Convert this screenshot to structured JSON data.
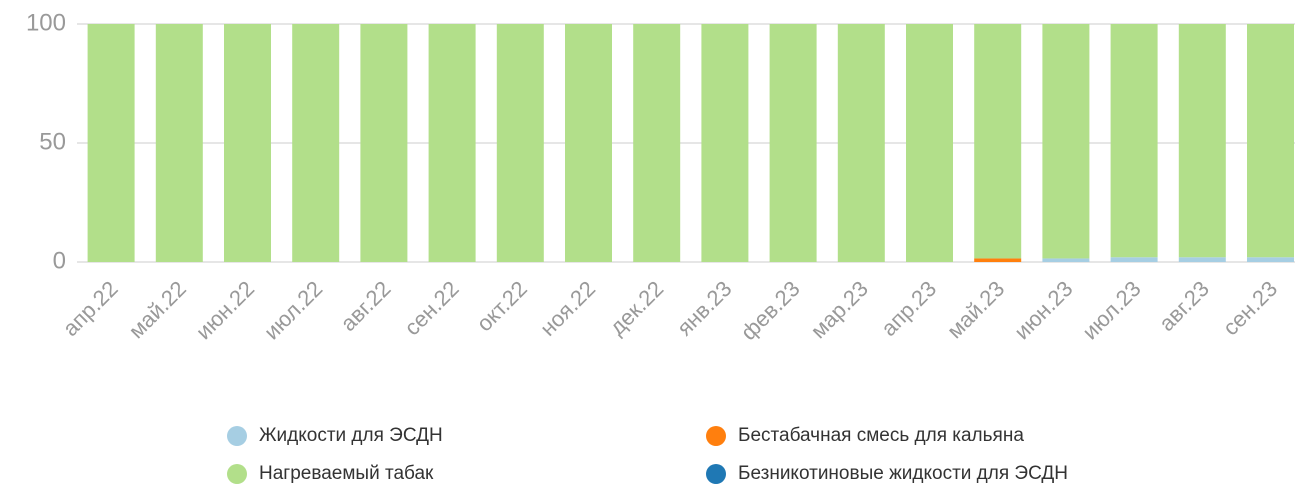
{
  "chart_data": {
    "type": "stacked_bar",
    "categories": [
      "апр.22",
      "май.22",
      "июн.22",
      "июл.22",
      "авг.22",
      "сен.22",
      "окт.22",
      "ноя.22",
      "дек.22",
      "янв.23",
      "фев.23",
      "мар.23",
      "апр.23",
      "май.23",
      "июн.23",
      "июл.23",
      "авг.23",
      "сен.23"
    ],
    "series": [
      {
        "name": "Жидкости для ЭСДН",
        "color": "#a6cee3",
        "values": [
          0,
          0,
          0,
          0,
          0,
          0,
          0,
          0,
          0,
          0,
          0,
          0,
          0,
          0,
          1.5,
          2,
          2,
          2
        ]
      },
      {
        "name": "Бестабачная смесь для кальяна",
        "color": "#ff7f0e",
        "values": [
          0,
          0,
          0,
          0,
          0,
          0,
          0,
          0,
          0,
          0,
          0,
          0,
          0,
          1.5,
          0,
          0,
          0,
          0
        ]
      },
      {
        "name": "Нагреваемый табак",
        "color": "#b2df8a",
        "values": [
          100,
          100,
          100,
          100,
          100,
          100,
          100,
          100,
          100,
          100,
          100,
          100,
          100,
          98.5,
          98.5,
          98,
          98,
          98
        ]
      },
      {
        "name": "Безникотиновые жидкости для ЭСДН",
        "color": "#1f78b4",
        "values": [
          0,
          0,
          0,
          0,
          0,
          0,
          0,
          0,
          0,
          0,
          0,
          0,
          0,
          0,
          0,
          0,
          0,
          0
        ]
      }
    ],
    "ylim": [
      0,
      100
    ],
    "yticks": [
      0,
      50,
      100
    ],
    "grid": true,
    "legend": "bottom"
  }
}
